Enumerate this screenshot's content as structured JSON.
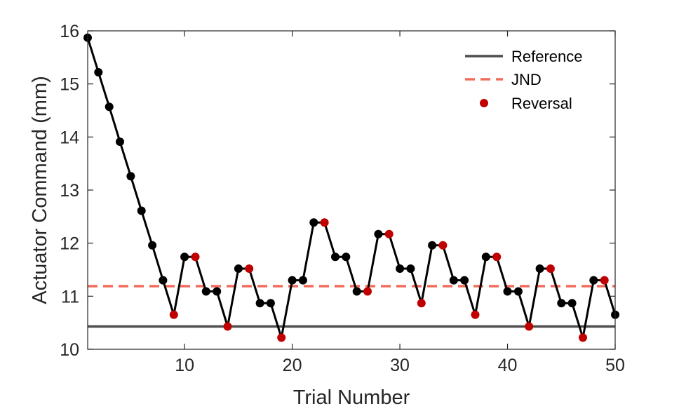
{
  "chart_data": {
    "type": "line",
    "xlabel": "Trial Number",
    "ylabel": "Actuator Command (mm)",
    "xlim": [
      1,
      50
    ],
    "ylim": [
      10,
      16
    ],
    "xticks": [
      10,
      20,
      30,
      40,
      50
    ],
    "yticks": [
      10,
      11,
      12,
      13,
      14,
      15,
      16
    ],
    "grid": false,
    "legend_position": "top-right",
    "reference": {
      "name": "Reference",
      "value": 10.43,
      "color": "#4d4d4d"
    },
    "jnd": {
      "name": "JND",
      "value": 11.19,
      "color": "#f26b5b"
    },
    "series": [
      {
        "name": "",
        "color": "#000000",
        "x": [
          1,
          2,
          3,
          4,
          5,
          6,
          7,
          8,
          9,
          10,
          11,
          12,
          13,
          14,
          15,
          16,
          17,
          18,
          19,
          20,
          21,
          22,
          23,
          24,
          25,
          26,
          27,
          28,
          29,
          30,
          31,
          32,
          33,
          34,
          35,
          36,
          37,
          38,
          39,
          40,
          41,
          42,
          43,
          44,
          45,
          46,
          47,
          48,
          49,
          50
        ],
        "y": [
          15.87,
          15.22,
          14.57,
          13.91,
          13.26,
          12.61,
          11.96,
          11.3,
          10.65,
          11.74,
          11.74,
          11.09,
          11.09,
          10.43,
          11.52,
          11.52,
          10.87,
          10.87,
          10.22,
          11.3,
          11.3,
          12.39,
          12.39,
          11.74,
          11.74,
          11.09,
          11.09,
          12.17,
          12.17,
          11.52,
          11.52,
          10.87,
          11.96,
          11.96,
          11.3,
          11.3,
          10.65,
          11.74,
          11.74,
          11.09,
          11.09,
          10.43,
          11.52,
          11.52,
          10.87,
          10.87,
          10.22,
          11.3,
          11.3,
          10.65
        ]
      }
    ],
    "reversals": {
      "name": "Reversal",
      "color": "#c00000",
      "x": [
        9,
        11,
        14,
        16,
        19,
        23,
        27,
        29,
        32,
        34,
        37,
        39,
        42,
        44,
        47,
        49
      ]
    }
  }
}
